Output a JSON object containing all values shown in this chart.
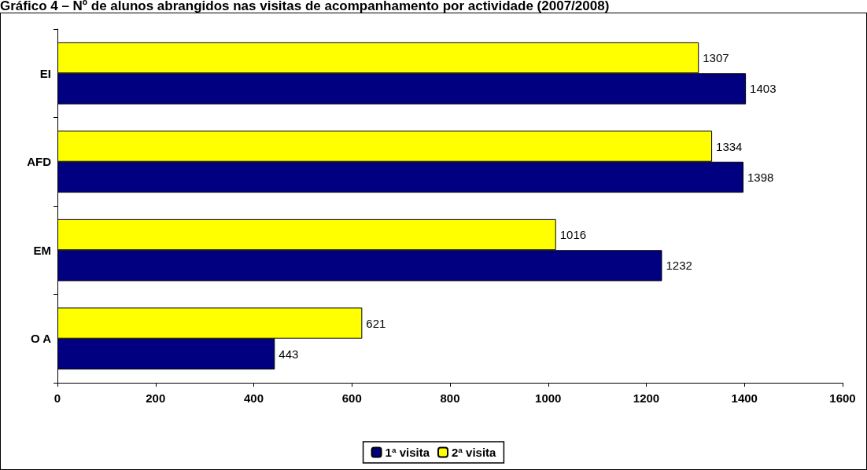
{
  "chart_data": {
    "type": "bar",
    "orientation": "horizontal",
    "title": "Gráfico 4 – Nº de alunos abrangidos nas visitas de acompanhamento por actividade (2007/2008)",
    "categories": [
      "EI",
      "AFD",
      "EM",
      "O A"
    ],
    "series": [
      {
        "name": "1ª visita",
        "color": "#000080",
        "values": [
          1403,
          1398,
          1232,
          443
        ]
      },
      {
        "name": "2ª visita",
        "color": "#ffff00",
        "values": [
          1307,
          1334,
          1016,
          621
        ]
      }
    ],
    "xlim": [
      0,
      1600
    ],
    "xticks": [
      0,
      200,
      400,
      600,
      800,
      1000,
      1200,
      1400,
      1600
    ],
    "grid": false,
    "legend": "bottom",
    "data_labels": true
  }
}
